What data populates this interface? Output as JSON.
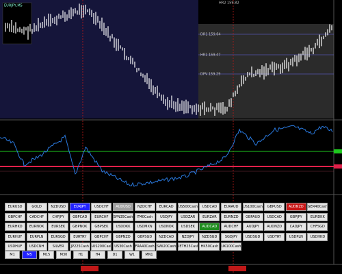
{
  "header": {
    "symbol": "EURJPY,M5"
  },
  "levels": [
    "HR2 159.82",
    "DR1 159.64",
    "HR1 159.47",
    "DPV 159.29"
  ],
  "symbols": [
    [
      "EURUSD",
      "GOLD",
      "NZDUSD",
      {
        "label": "EURJPY",
        "color": "#2222ff"
      },
      "USDCHF",
      {
        "label": "AUDUSD",
        "color": "#a0a0a0"
      },
      "NZDCHF",
      "EURCAD",
      "US500Cash",
      "USDCAD",
      "EURAUD",
      "US100Cash",
      "GBPUSD",
      {
        "label": "AUDNZD",
        "color": "#c81414"
      },
      "GER40Cash"
    ],
    [
      "GBPCHF",
      "CADCHF",
      "CHFJPY",
      "GBPCAD",
      "EURCHF",
      "SPN35Cash",
      "IT40Cash",
      "USDJPY",
      "USDZAR",
      "EURZAR",
      "EURNZD",
      "GBPAUD",
      "USDCAD",
      "GBPJPY",
      "EURDKK"
    ],
    [
      "EURHKD",
      "EURNOK",
      "EURSEK",
      "GBPNOK",
      "GBPSEK",
      "USDDKK",
      "USDMXN",
      "USDNOK",
      "USDSEK",
      {
        "label": "AUDCAD",
        "color": "#1e8c1e"
      },
      "AUDCHF",
      "AUDJPY",
      "AUDNZD",
      "CADJPY",
      "CHFSGD"
    ],
    [
      "EURHUF",
      "EURPLN",
      "EURSGD",
      "EURTRY",
      "GBPCHF",
      "GBPNZD",
      "GBPSGD",
      "NZDCAD",
      "NZDJPY",
      "NZDSGD",
      "SGDJPY",
      "USDSGD",
      "USDTRY",
      "USDPLN",
      "USDHKD"
    ],
    [
      "USDHUF",
      "USDCNH",
      "SILVER",
      "JP225Cash",
      "AUS200Cash",
      "US30Cash",
      "FRA40Cash",
      "SWI20Cash",
      "NETH25Cash",
      "HK50Cash",
      "UK100Cash"
    ]
  ],
  "timeframes": [
    "M1",
    {
      "label": "M5",
      "color": "#2222ff"
    },
    "M15",
    "M30",
    "H1",
    "H4",
    "D1",
    "W1",
    "MN1"
  ]
}
